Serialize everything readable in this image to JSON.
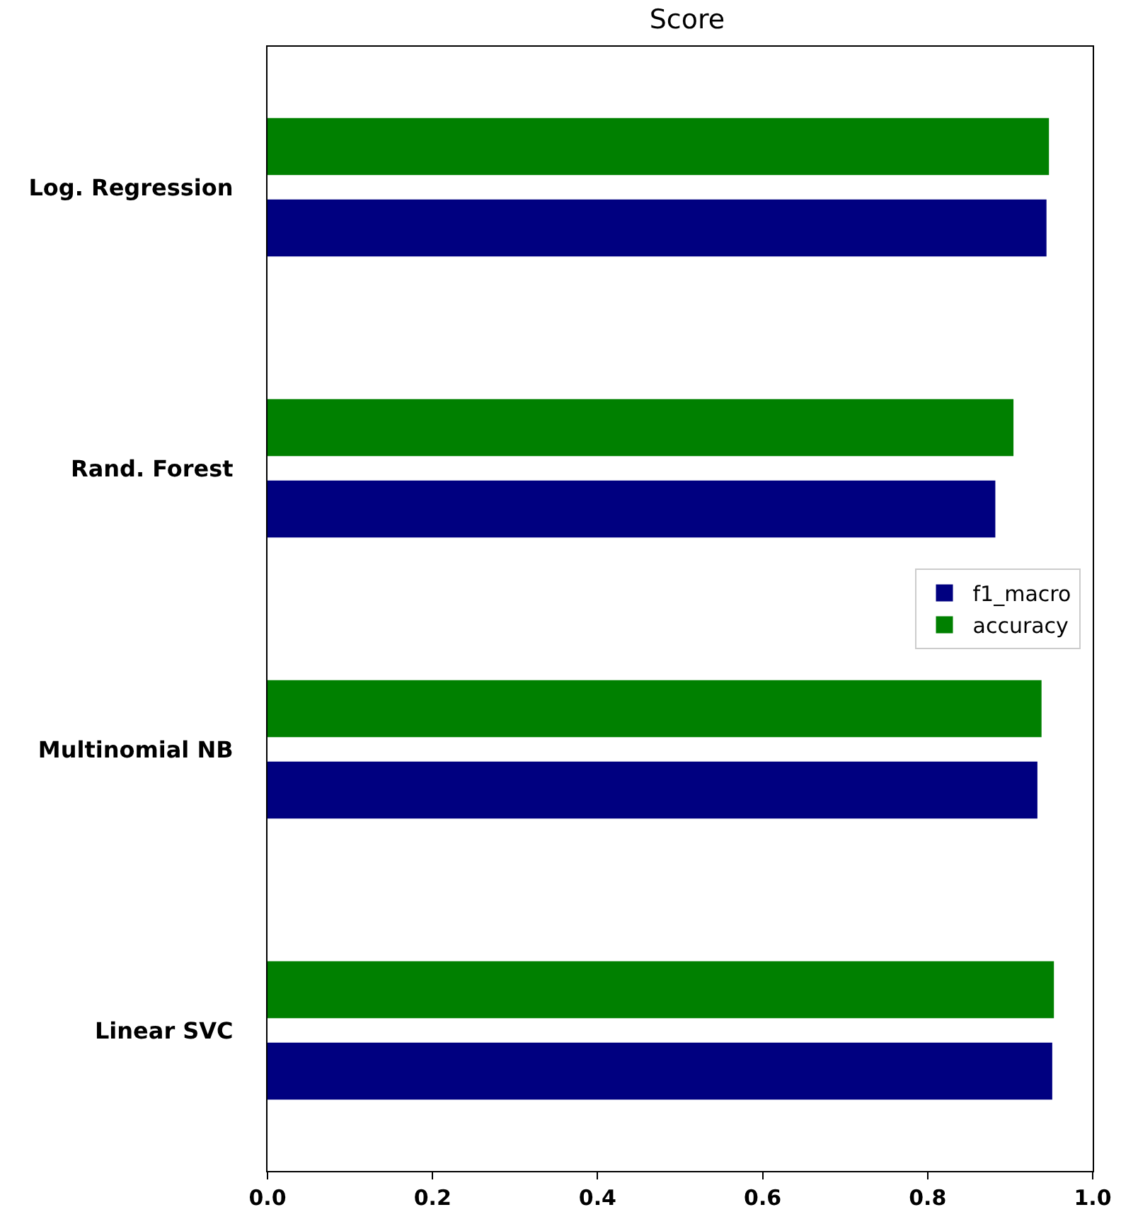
{
  "chart_data": {
    "type": "bar",
    "orientation": "horizontal",
    "title": "Score",
    "categories": [
      "Log. Regression",
      "Rand. Forest",
      "Multinomial NB",
      "Linear SVC"
    ],
    "series": [
      {
        "name": "f1_macro",
        "color": "#000080",
        "values": [
          0.944,
          0.882,
          0.933,
          0.951
        ]
      },
      {
        "name": "accuracy",
        "color": "#008000",
        "values": [
          0.947,
          0.904,
          0.938,
          0.953
        ]
      }
    ],
    "xlim": [
      0,
      1
    ],
    "xticks": [
      {
        "value": 0,
        "label": "0.0"
      },
      {
        "value": 0.2,
        "label": "0.2"
      },
      {
        "value": 0.4,
        "label": "0.4"
      },
      {
        "value": 0.6,
        "label": "0.6"
      },
      {
        "value": 0.8,
        "label": "0.8"
      },
      {
        "value": 1,
        "label": "1.0"
      }
    ],
    "grid": false,
    "legend": "right"
  }
}
